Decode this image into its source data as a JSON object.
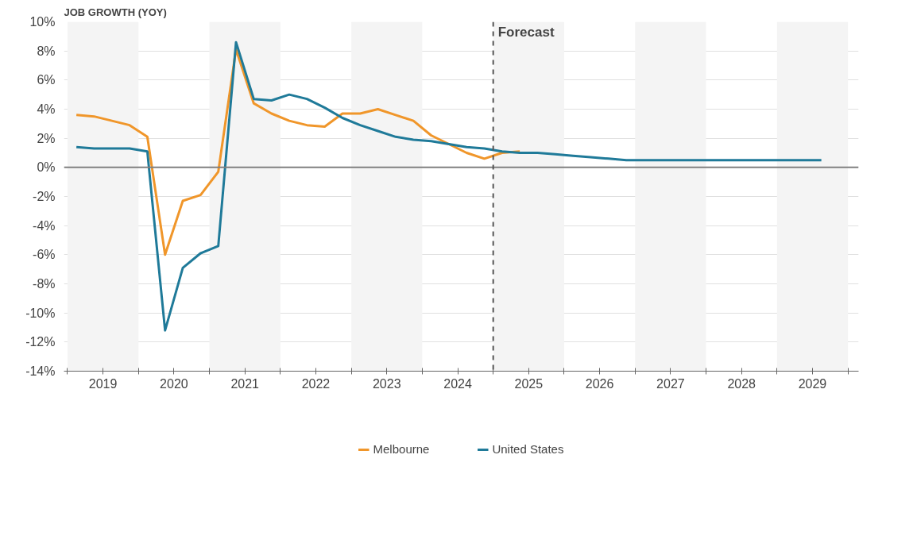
{
  "chart_data": {
    "type": "line",
    "title": "JOB GROWTH (YOY)",
    "x": [
      2019.125,
      2019.375,
      2019.625,
      2019.875,
      2020.125,
      2020.375,
      2020.625,
      2020.875,
      2021.125,
      2021.375,
      2021.625,
      2021.875,
      2022.125,
      2022.375,
      2022.625,
      2022.875,
      2023.125,
      2023.375,
      2023.625,
      2023.875,
      2024.125,
      2024.375,
      2024.625,
      2024.875,
      2025.125,
      2025.375,
      2025.625,
      2025.875,
      2026.125,
      2026.375,
      2026.625,
      2026.875,
      2027.125,
      2027.375,
      2027.625,
      2027.875,
      2028.125,
      2028.375,
      2028.625,
      2028.875,
      2029.125,
      2029.375,
      2029.625
    ],
    "series": [
      {
        "name": "Melbourne",
        "color": "#f0962a",
        "values": [
          3.6,
          3.5,
          3.2,
          2.9,
          2.1,
          -6.0,
          -2.3,
          -1.9,
          -0.3,
          8.1,
          4.4,
          3.7,
          3.2,
          2.9,
          2.8,
          3.7,
          3.7,
          4.0,
          3.6,
          3.2,
          2.2,
          1.6,
          1.0,
          0.6,
          1.0,
          1.1,
          null,
          null,
          null,
          null,
          null,
          null,
          null,
          null,
          null,
          null,
          null,
          null,
          null,
          null,
          null,
          null,
          null
        ]
      },
      {
        "name": "United States",
        "color": "#1f7a99",
        "values": [
          1.4,
          1.3,
          1.3,
          1.3,
          1.1,
          -11.2,
          -6.9,
          -5.9,
          -5.4,
          8.6,
          4.7,
          4.6,
          5.0,
          4.7,
          4.1,
          3.4,
          2.9,
          2.5,
          2.1,
          1.9,
          1.8,
          1.6,
          1.4,
          1.3,
          1.1,
          1.0,
          1.0,
          0.9,
          0.8,
          0.7,
          0.6,
          0.5,
          0.5,
          0.5,
          0.5,
          0.5,
          0.5,
          0.5,
          0.5,
          0.5,
          0.5,
          0.5,
          0.5
        ]
      }
    ],
    "xlim": [
      2018.95,
      2030.15
    ],
    "xticks": [
      {
        "value": 2019,
        "label": null
      },
      {
        "value": 2019.5,
        "label": "2019"
      },
      {
        "value": 2020,
        "label": null
      },
      {
        "value": 2020.5,
        "label": "2020"
      },
      {
        "value": 2021,
        "label": null
      },
      {
        "value": 2021.5,
        "label": "2021"
      },
      {
        "value": 2022,
        "label": null
      },
      {
        "value": 2022.5,
        "label": "2022"
      },
      {
        "value": 2023,
        "label": null
      },
      {
        "value": 2023.5,
        "label": "2023"
      },
      {
        "value": 2024,
        "label": null
      },
      {
        "value": 2024.5,
        "label": "2024"
      },
      {
        "value": 2025,
        "label": null
      },
      {
        "value": 2025.5,
        "label": "2025"
      },
      {
        "value": 2026,
        "label": null
      },
      {
        "value": 2026.5,
        "label": "2026"
      },
      {
        "value": 2027,
        "label": null
      },
      {
        "value": 2027.5,
        "label": "2027"
      },
      {
        "value": 2028,
        "label": null
      },
      {
        "value": 2028.5,
        "label": "2028"
      },
      {
        "value": 2029,
        "label": null
      },
      {
        "value": 2029.5,
        "label": "2029"
      },
      {
        "value": 2030,
        "label": null
      }
    ],
    "ylim": [
      -14,
      10
    ],
    "yticks": [
      {
        "value": -14,
        "label": "-14%"
      },
      {
        "value": -12,
        "label": "-12%"
      },
      {
        "value": -10,
        "label": "-10%"
      },
      {
        "value": -8,
        "label": "-8%"
      },
      {
        "value": -6,
        "label": "-6%"
      },
      {
        "value": -4,
        "label": "-4%"
      },
      {
        "value": -2,
        "label": "-2%"
      },
      {
        "value": 0,
        "label": "0%"
      },
      {
        "value": 2,
        "label": "2%"
      },
      {
        "value": 4,
        "label": "4%"
      },
      {
        "value": 6,
        "label": "6%"
      },
      {
        "value": 8,
        "label": "8%"
      },
      {
        "value": 10,
        "label": "10%"
      }
    ],
    "bands": [
      {
        "axis": "x",
        "from": 2019,
        "to": 2020,
        "label": null,
        "color": "#f4f4f4"
      },
      {
        "axis": "x",
        "from": 2021,
        "to": 2022,
        "label": null,
        "color": "#f4f4f4"
      },
      {
        "axis": "x",
        "from": 2023,
        "to": 2024,
        "label": null,
        "color": "#f4f4f4"
      },
      {
        "axis": "x",
        "from": 2025,
        "to": 2026,
        "label": null,
        "color": "#f4f4f4"
      },
      {
        "axis": "x",
        "from": 2027,
        "to": 2028,
        "label": null,
        "color": "#f4f4f4"
      },
      {
        "axis": "x",
        "from": 2029,
        "to": 2030,
        "label": null,
        "color": "#f4f4f4"
      }
    ],
    "ref_lines": [
      {
        "axis": "y",
        "value": 0,
        "label": null,
        "color": "#808080",
        "line_style": "solid"
      },
      {
        "axis": "x",
        "value": 2025,
        "label": "Forecast",
        "color": "#555555",
        "line_style": "dashed"
      }
    ],
    "grid": "y",
    "legend": "bottom",
    "marker": "none",
    "line_style": "solid"
  }
}
